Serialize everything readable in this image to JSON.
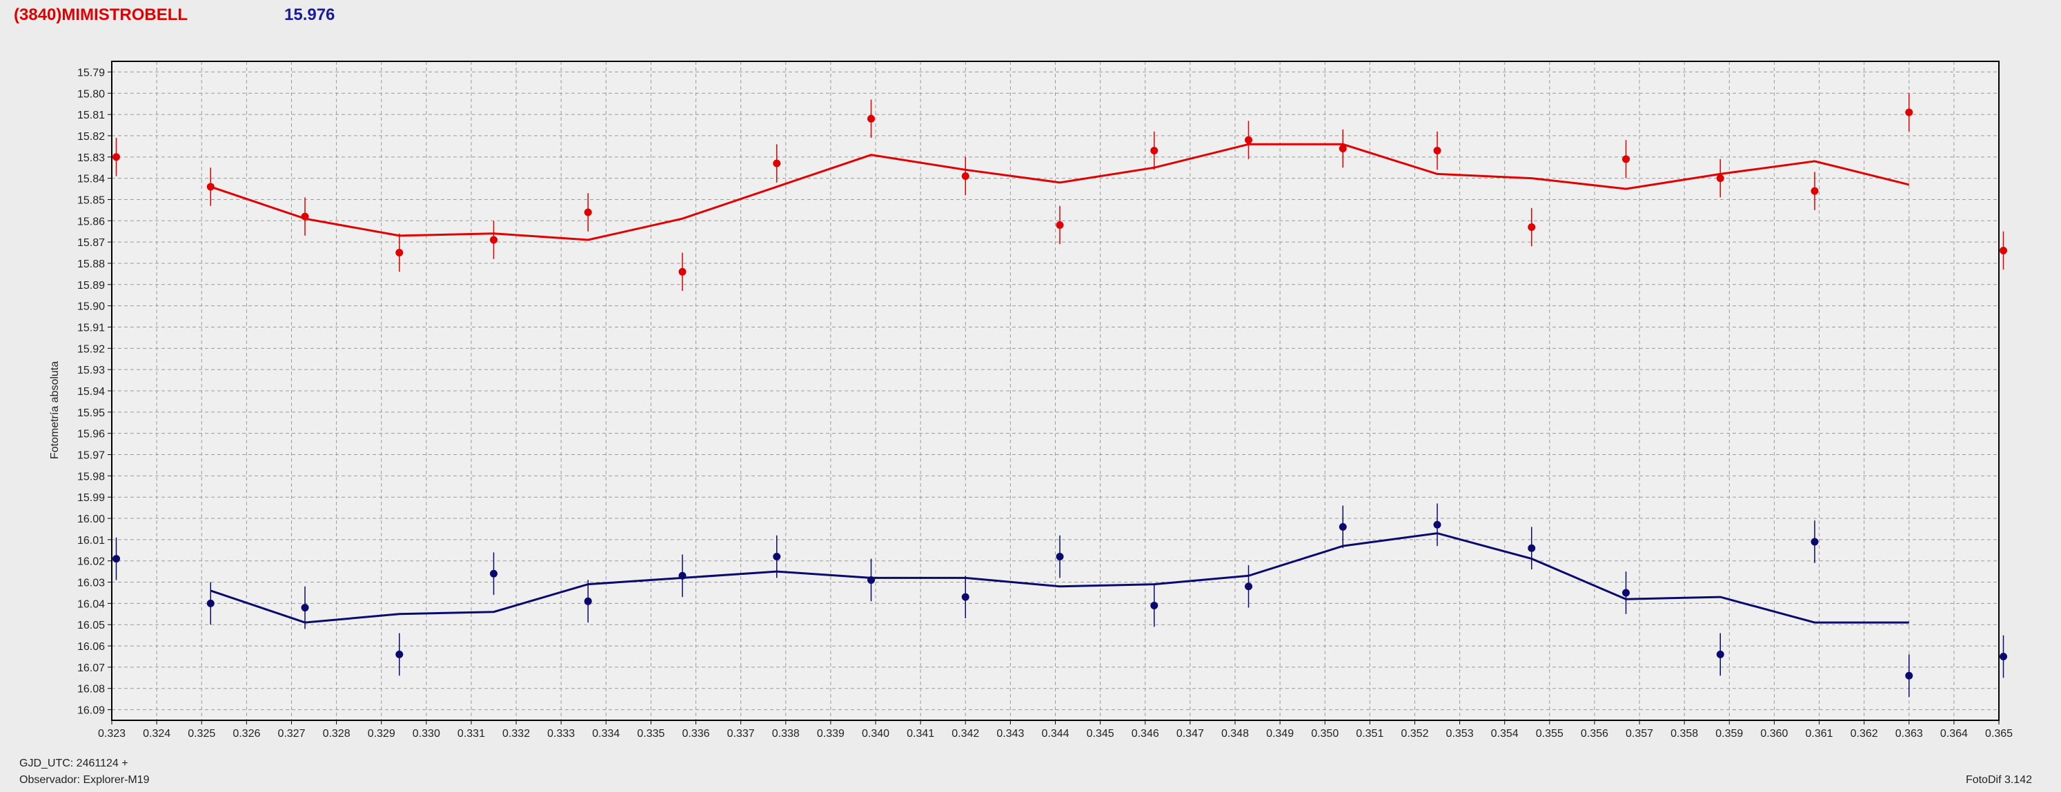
{
  "header": {
    "object_name": "(3840)MIMISTROBELL",
    "magnitude": "15.976"
  },
  "footer": {
    "gjd": "GJD_UTC: 2461124 +",
    "observer": "Observador: Explorer-M19",
    "software": "FotoDif 3.142"
  },
  "colors": {
    "series_red": "#e00000",
    "series_blue": "#0a0a6e",
    "grid": "#9a9a9a",
    "plot_bg": "#efefef",
    "page_bg": "#ececec"
  },
  "chart_data": {
    "type": "line",
    "ylabel": "Fotometría absoluta",
    "xlabel": "",
    "xlim": [
      0.323,
      0.365
    ],
    "ylim": [
      15.785,
      16.095
    ],
    "y_inverted": true,
    "grid": true,
    "xticks": [
      "0.323",
      "0.324",
      "0.325",
      "0.326",
      "0.327",
      "0.328",
      "0.329",
      "0.330",
      "0.331",
      "0.332",
      "0.333",
      "0.334",
      "0.335",
      "0.336",
      "0.337",
      "0.338",
      "0.339",
      "0.340",
      "0.341",
      "0.342",
      "0.343",
      "0.344",
      "0.345",
      "0.346",
      "0.347",
      "0.348",
      "0.349",
      "0.350",
      "0.351",
      "0.352",
      "0.353",
      "0.354",
      "0.355",
      "0.356",
      "0.357",
      "0.358",
      "0.359",
      "0.360",
      "0.361",
      "0.362",
      "0.363",
      "0.364",
      "0.365"
    ],
    "yticks": [
      "15.79",
      "15.80",
      "15.81",
      "15.82",
      "15.83",
      "15.84",
      "15.85",
      "15.86",
      "15.87",
      "15.88",
      "15.89",
      "15.90",
      "15.91",
      "15.92",
      "15.93",
      "15.94",
      "15.95",
      "15.96",
      "15.97",
      "15.98",
      "15.99",
      "16.00",
      "16.01",
      "16.02",
      "16.03",
      "16.04",
      "16.05",
      "16.06",
      "16.07",
      "16.08",
      "16.09"
    ],
    "series": [
      {
        "color": "#e00000",
        "points": [
          {
            "x": 0.3231,
            "y": 15.83,
            "err": 0.009
          },
          {
            "x": 0.3252,
            "y": 15.844,
            "err": 0.009
          },
          {
            "x": 0.3273,
            "y": 15.858,
            "err": 0.009
          },
          {
            "x": 0.3294,
            "y": 15.875,
            "err": 0.009
          },
          {
            "x": 0.3315,
            "y": 15.869,
            "err": 0.009
          },
          {
            "x": 0.3336,
            "y": 15.856,
            "err": 0.009
          },
          {
            "x": 0.3357,
            "y": 15.884,
            "err": 0.009
          },
          {
            "x": 0.3378,
            "y": 15.833,
            "err": 0.009
          },
          {
            "x": 0.3399,
            "y": 15.812,
            "err": 0.009
          },
          {
            "x": 0.342,
            "y": 15.839,
            "err": 0.009
          },
          {
            "x": 0.3441,
            "y": 15.862,
            "err": 0.009
          },
          {
            "x": 0.3462,
            "y": 15.827,
            "err": 0.009
          },
          {
            "x": 0.3483,
            "y": 15.822,
            "err": 0.009
          },
          {
            "x": 0.3504,
            "y": 15.826,
            "err": 0.009
          },
          {
            "x": 0.3525,
            "y": 15.827,
            "err": 0.009
          },
          {
            "x": 0.3546,
            "y": 15.863,
            "err": 0.009
          },
          {
            "x": 0.3567,
            "y": 15.831,
            "err": 0.009
          },
          {
            "x": 0.3588,
            "y": 15.84,
            "err": 0.009
          },
          {
            "x": 0.3609,
            "y": 15.846,
            "err": 0.009
          },
          {
            "x": 0.363,
            "y": 15.809,
            "err": 0.009
          },
          {
            "x": 0.3651,
            "y": 15.874,
            "err": 0.009
          }
        ],
        "fit": [
          {
            "x": 0.3252,
            "y": 15.844
          },
          {
            "x": 0.3273,
            "y": 15.859
          },
          {
            "x": 0.3294,
            "y": 15.867
          },
          {
            "x": 0.3315,
            "y": 15.866
          },
          {
            "x": 0.3336,
            "y": 15.869
          },
          {
            "x": 0.3357,
            "y": 15.859
          },
          {
            "x": 0.3378,
            "y": 15.844
          },
          {
            "x": 0.3399,
            "y": 15.829
          },
          {
            "x": 0.342,
            "y": 15.836
          },
          {
            "x": 0.3441,
            "y": 15.842
          },
          {
            "x": 0.3462,
            "y": 15.835
          },
          {
            "x": 0.3483,
            "y": 15.824
          },
          {
            "x": 0.3504,
            "y": 15.824
          },
          {
            "x": 0.3525,
            "y": 15.838
          },
          {
            "x": 0.3546,
            "y": 15.84
          },
          {
            "x": 0.3567,
            "y": 15.845
          },
          {
            "x": 0.3588,
            "y": 15.838
          },
          {
            "x": 0.3609,
            "y": 15.832
          },
          {
            "x": 0.363,
            "y": 15.843
          }
        ]
      },
      {
        "color": "#0a0a6e",
        "points": [
          {
            "x": 0.3231,
            "y": 16.019,
            "err": 0.01
          },
          {
            "x": 0.3252,
            "y": 16.04,
            "err": 0.01
          },
          {
            "x": 0.3273,
            "y": 16.042,
            "err": 0.01
          },
          {
            "x": 0.3294,
            "y": 16.064,
            "err": 0.01
          },
          {
            "x": 0.3315,
            "y": 16.026,
            "err": 0.01
          },
          {
            "x": 0.3336,
            "y": 16.039,
            "err": 0.01
          },
          {
            "x": 0.3357,
            "y": 16.027,
            "err": 0.01
          },
          {
            "x": 0.3378,
            "y": 16.018,
            "err": 0.01
          },
          {
            "x": 0.3399,
            "y": 16.029,
            "err": 0.01
          },
          {
            "x": 0.342,
            "y": 16.037,
            "err": 0.01
          },
          {
            "x": 0.3441,
            "y": 16.018,
            "err": 0.01
          },
          {
            "x": 0.3462,
            "y": 16.041,
            "err": 0.01
          },
          {
            "x": 0.3483,
            "y": 16.032,
            "err": 0.01
          },
          {
            "x": 0.3504,
            "y": 16.004,
            "err": 0.01
          },
          {
            "x": 0.3525,
            "y": 16.003,
            "err": 0.01
          },
          {
            "x": 0.3546,
            "y": 16.014,
            "err": 0.01
          },
          {
            "x": 0.3567,
            "y": 16.035,
            "err": 0.01
          },
          {
            "x": 0.3588,
            "y": 16.064,
            "err": 0.01
          },
          {
            "x": 0.3609,
            "y": 16.011,
            "err": 0.01
          },
          {
            "x": 0.363,
            "y": 16.074,
            "err": 0.01
          },
          {
            "x": 0.3651,
            "y": 16.065,
            "err": 0.01
          }
        ],
        "fit": [
          {
            "x": 0.3252,
            "y": 16.034
          },
          {
            "x": 0.3273,
            "y": 16.049
          },
          {
            "x": 0.3294,
            "y": 16.045
          },
          {
            "x": 0.3315,
            "y": 16.044
          },
          {
            "x": 0.3336,
            "y": 16.031
          },
          {
            "x": 0.3357,
            "y": 16.028
          },
          {
            "x": 0.3378,
            "y": 16.025
          },
          {
            "x": 0.3399,
            "y": 16.028
          },
          {
            "x": 0.342,
            "y": 16.028
          },
          {
            "x": 0.3441,
            "y": 16.032
          },
          {
            "x": 0.3462,
            "y": 16.031
          },
          {
            "x": 0.3483,
            "y": 16.027
          },
          {
            "x": 0.3504,
            "y": 16.013
          },
          {
            "x": 0.3525,
            "y": 16.007
          },
          {
            "x": 0.3546,
            "y": 16.019
          },
          {
            "x": 0.3567,
            "y": 16.038
          },
          {
            "x": 0.3588,
            "y": 16.037
          },
          {
            "x": 0.3609,
            "y": 16.049
          },
          {
            "x": 0.363,
            "y": 16.049
          }
        ]
      }
    ]
  }
}
